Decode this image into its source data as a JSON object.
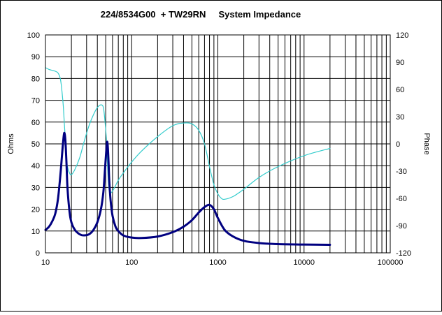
{
  "chart_data": {
    "type": "line",
    "title": "224/8534G00  + TW29RN     System Impedance",
    "ylabel": "Ohms",
    "y2label": "Phase",
    "xscale": "log",
    "xlim": [
      10,
      100000
    ],
    "ylim": [
      0,
      100
    ],
    "y2lim": [
      -120,
      120
    ],
    "grid": true,
    "x_ticks": [
      "10",
      "100",
      "1000",
      "10000",
      "100000"
    ],
    "y_ticks": [
      "0",
      "10",
      "20",
      "30",
      "40",
      "50",
      "60",
      "70",
      "80",
      "90",
      "100"
    ],
    "y2_ticks": [
      "-120",
      "-90",
      "-60",
      "-30",
      "0",
      "30",
      "60",
      "90",
      "120"
    ],
    "colors": {
      "impedance": "#000080",
      "phase": "#33CCCC",
      "border": "#000000"
    },
    "series": [
      {
        "key": "impedance",
        "axis": "left",
        "x": [
          10,
          11,
          12,
          13,
          14,
          15,
          15.5,
          16,
          16.5,
          17,
          17.5,
          18,
          19,
          20,
          22,
          25,
          28,
          32,
          36,
          40,
          44,
          47,
          49,
          51,
          52,
          53,
          54,
          55,
          57,
          60,
          65,
          70,
          80,
          100,
          130,
          200,
          300,
          400,
          500,
          600,
          700,
          800,
          900,
          1000,
          1200,
          1500,
          2000,
          3000,
          5000,
          10000,
          20000
        ],
        "values": [
          10.5,
          12,
          14.5,
          18,
          25,
          37,
          44,
          50.5,
          55,
          52,
          42,
          30,
          19,
          14,
          10.5,
          8.5,
          8,
          8.5,
          10.5,
          14,
          20,
          28,
          38,
          48,
          51,
          48,
          41,
          33,
          24,
          17,
          12,
          10,
          8,
          7,
          6.8,
          7.5,
          9.5,
          12,
          15,
          18.5,
          21,
          22,
          20,
          16,
          10.5,
          7.5,
          5.5,
          4.5,
          4,
          3.8,
          3.7
        ]
      },
      {
        "key": "phase",
        "axis": "right",
        "x": [
          10,
          11,
          12,
          13,
          14,
          15,
          16,
          16.5,
          17,
          17.5,
          18,
          19,
          20,
          22,
          25,
          28,
          32,
          36,
          40,
          44,
          47,
          49,
          51,
          52,
          53,
          54,
          55,
          57,
          60,
          65,
          70,
          80,
          100,
          130,
          200,
          300,
          400,
          500,
          600,
          700,
          800,
          900,
          1000,
          1100,
          1200,
          1500,
          2000,
          3000,
          5000,
          10000,
          20000
        ],
        "values": [
          84,
          82,
          81,
          80,
          78,
          70,
          45,
          25,
          5,
          -15,
          -25,
          -32,
          -34,
          -28,
          -15,
          2,
          20,
          32,
          40,
          43,
          40,
          25,
          5,
          -15,
          -32,
          -45,
          -52,
          -54,
          -52,
          -46,
          -40,
          -32,
          -20,
          -8,
          8,
          20,
          23,
          22,
          15,
          0,
          -25,
          -45,
          -55,
          -60,
          -61,
          -58,
          -50,
          -37,
          -25,
          -13,
          -5
        ]
      }
    ]
  }
}
